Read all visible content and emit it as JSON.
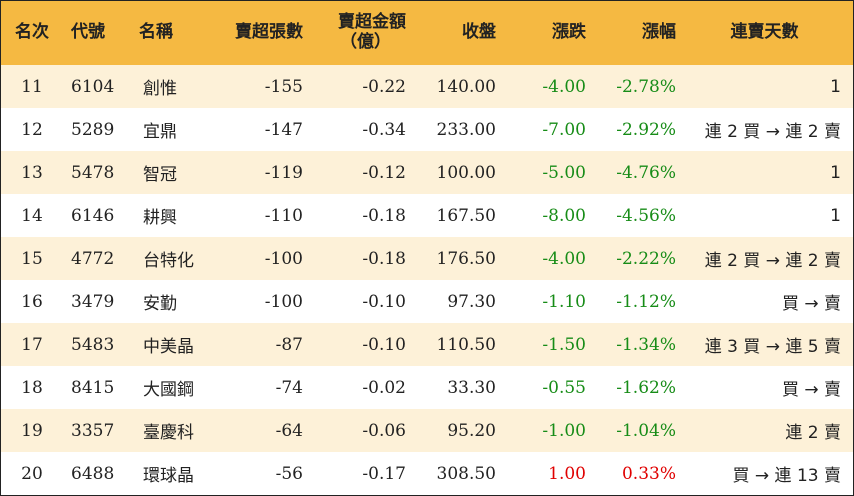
{
  "colors": {
    "header_bg": "#f5b942",
    "stripe_bg": "#fdf1d8",
    "down": "#178c17",
    "up": "#e00000"
  },
  "headers": {
    "rank": "名次",
    "code": "代號",
    "name": "名稱",
    "sell_volume": "賣超張數",
    "sell_amount_line1": "賣超金額",
    "sell_amount_line2": "（億）",
    "close": "收盤",
    "change": "漲跌",
    "change_pct": "漲幅",
    "sell_days": "連賣天數"
  },
  "rows": [
    {
      "rank": "11",
      "code": "6104",
      "name": "創惟",
      "sell_volume": "-155",
      "sell_amount": "-0.22",
      "close": "140.00",
      "change": "-4.00",
      "change_pct": "-2.78%",
      "sell_days": "1",
      "direction": "down"
    },
    {
      "rank": "12",
      "code": "5289",
      "name": "宜鼎",
      "sell_volume": "-147",
      "sell_amount": "-0.34",
      "close": "233.00",
      "change": "-7.00",
      "change_pct": "-2.92%",
      "sell_days": "連 2 買 → 連 2 賣",
      "direction": "down"
    },
    {
      "rank": "13",
      "code": "5478",
      "name": "智冠",
      "sell_volume": "-119",
      "sell_amount": "-0.12",
      "close": "100.00",
      "change": "-5.00",
      "change_pct": "-4.76%",
      "sell_days": "1",
      "direction": "down"
    },
    {
      "rank": "14",
      "code": "6146",
      "name": "耕興",
      "sell_volume": "-110",
      "sell_amount": "-0.18",
      "close": "167.50",
      "change": "-8.00",
      "change_pct": "-4.56%",
      "sell_days": "1",
      "direction": "down"
    },
    {
      "rank": "15",
      "code": "4772",
      "name": "台特化",
      "sell_volume": "-100",
      "sell_amount": "-0.18",
      "close": "176.50",
      "change": "-4.00",
      "change_pct": "-2.22%",
      "sell_days": "連 2 買 → 連 2 賣",
      "direction": "down"
    },
    {
      "rank": "16",
      "code": "3479",
      "name": "安勤",
      "sell_volume": "-100",
      "sell_amount": "-0.10",
      "close": "97.30",
      "change": "-1.10",
      "change_pct": "-1.12%",
      "sell_days": "買 → 賣",
      "direction": "down"
    },
    {
      "rank": "17",
      "code": "5483",
      "name": "中美晶",
      "sell_volume": "-87",
      "sell_amount": "-0.10",
      "close": "110.50",
      "change": "-1.50",
      "change_pct": "-1.34%",
      "sell_days": "連 3 買 → 連 5 賣",
      "direction": "down"
    },
    {
      "rank": "18",
      "code": "8415",
      "name": "大國鋼",
      "sell_volume": "-74",
      "sell_amount": "-0.02",
      "close": "33.30",
      "change": "-0.55",
      "change_pct": "-1.62%",
      "sell_days": "買 → 賣",
      "direction": "down"
    },
    {
      "rank": "19",
      "code": "3357",
      "name": "臺慶科",
      "sell_volume": "-64",
      "sell_amount": "-0.06",
      "close": "95.20",
      "change": "-1.00",
      "change_pct": "-1.04%",
      "sell_days": "連 2 賣",
      "direction": "down"
    },
    {
      "rank": "20",
      "code": "6488",
      "name": "環球晶",
      "sell_volume": "-56",
      "sell_amount": "-0.17",
      "close": "308.50",
      "change": "1.00",
      "change_pct": "0.33%",
      "sell_days": "買 → 連 13 賣",
      "direction": "up"
    }
  ]
}
